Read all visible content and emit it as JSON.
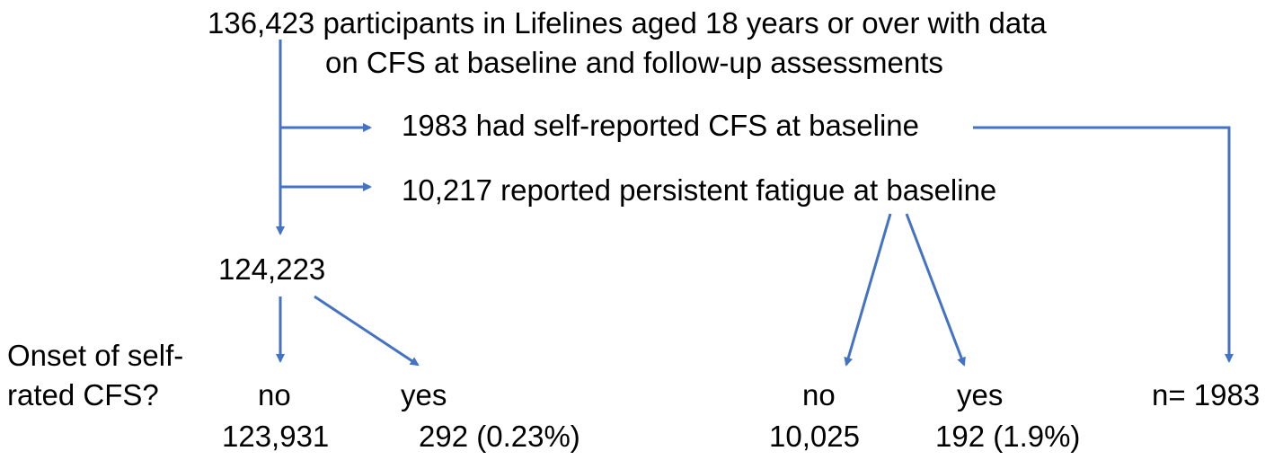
{
  "nodes": {
    "total_line1": "136,423 participants in Lifelines aged 18 years or over with data",
    "total_line2": "on CFS at baseline and follow-up assessments",
    "excluded_cfs": "1983 had self-reported CFS at baseline",
    "excluded_fatigue": "10,217 reported persistent fatigue at baseline",
    "remaining": "124,223",
    "question_line1": "Onset of self-",
    "question_line2": "rated CFS?",
    "main_no_label": "no",
    "main_no_count": "123,931",
    "main_yes_label": "yes",
    "main_yes_count": "292 (0.23%)",
    "fatigue_no_label": "no",
    "fatigue_no_count": "10,025",
    "fatigue_yes_label": "yes",
    "fatigue_yes_count": "192 (1.9%)",
    "cfs_count": "n= 1983"
  },
  "colors": {
    "arrow": "#4472c4",
    "text": "#000000"
  }
}
